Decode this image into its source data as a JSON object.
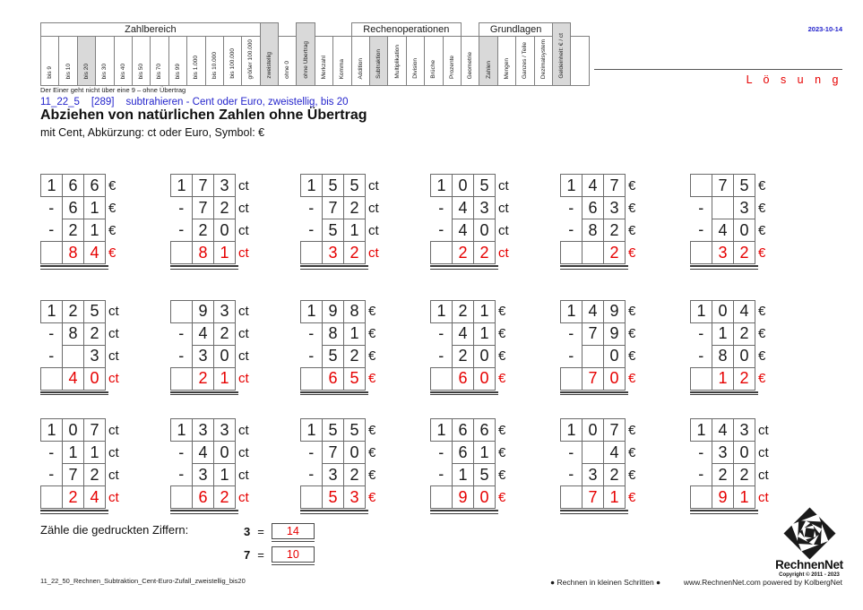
{
  "colors": {
    "accent_red": "#e60000",
    "accent_blue": "#2424cc",
    "highlight_gray": "#d9d9d9",
    "border_gray": "#808080"
  },
  "header": {
    "date": "2023-10-14",
    "solution_label": "L ö s u n g",
    "note": "Der Einer geht nicht über eine 9 – ohne Übertrag"
  },
  "header_table": {
    "groups": [
      {
        "label": "Zahlbereich",
        "start": 0,
        "span": 12
      },
      {
        "label": "Rechenoperationen",
        "start": 17,
        "span": 6
      },
      {
        "label": "Grundlagen",
        "start": 24,
        "span": 4
      }
    ],
    "columns": [
      {
        "label": "bis 9"
      },
      {
        "label": "bis 10"
      },
      {
        "label": "bis 20",
        "gray": true
      },
      {
        "label": "bis 30"
      },
      {
        "label": "bis 40"
      },
      {
        "label": "bis 50"
      },
      {
        "label": "bis 70"
      },
      {
        "label": "bis 99"
      },
      {
        "label": "bis 1.000"
      },
      {
        "label": "bis 10.000"
      },
      {
        "label": "bis 100.000"
      },
      {
        "label": "größer 100.000"
      },
      {
        "label": "zweistellig",
        "gray": true,
        "tall": true
      },
      {
        "label": "ohne 0"
      },
      {
        "label": "ohne Übertrag",
        "gray": true,
        "tall": true
      },
      {
        "label": "Merkzahl"
      },
      {
        "label": "Komma"
      },
      {
        "label": "Addition"
      },
      {
        "label": "Subtraktion",
        "gray": true
      },
      {
        "label": "Multiplikation"
      },
      {
        "label": "Division"
      },
      {
        "label": "Brüche"
      },
      {
        "label": "Prozente"
      },
      {
        "label": "Geometrie"
      },
      {
        "label": "Zahlen",
        "gray": true
      },
      {
        "label": "Mengen"
      },
      {
        "label": "Ganzes / Teile"
      },
      {
        "label": "Dezimalsystem"
      },
      {
        "label": "Geldeinheit: € / ct",
        "gray": true,
        "tall": true
      },
      {
        "label": ""
      }
    ]
  },
  "title": {
    "code": "11_22_5",
    "ref": "[289]",
    "desc": "subtrahieren - Cent oder Euro, zweistellig, bis 20",
    "heading": "Abziehen von natürlichen Zahlen ohne Übertrag",
    "subheading": "mit Cent, Abkürzung: ct oder Euro, Symbol: €"
  },
  "minus_sign": "-",
  "problems": [
    {
      "unit": "€",
      "minuend": [
        "1",
        "6",
        "6"
      ],
      "subtrahend1": [
        "6",
        "1"
      ],
      "subtrahend2": [
        "2",
        "1"
      ],
      "result": [
        "",
        "8",
        "4"
      ]
    },
    {
      "unit": "ct",
      "minuend": [
        "1",
        "7",
        "3"
      ],
      "subtrahend1": [
        "7",
        "2"
      ],
      "subtrahend2": [
        "2",
        "0"
      ],
      "result": [
        "",
        "8",
        "1"
      ]
    },
    {
      "unit": "ct",
      "minuend": [
        "1",
        "5",
        "5"
      ],
      "subtrahend1": [
        "7",
        "2"
      ],
      "subtrahend2": [
        "5",
        "1"
      ],
      "result": [
        "",
        "3",
        "2"
      ]
    },
    {
      "unit": "ct",
      "minuend": [
        "1",
        "0",
        "5"
      ],
      "subtrahend1": [
        "4",
        "3"
      ],
      "subtrahend2": [
        "4",
        "0"
      ],
      "result": [
        "",
        "2",
        "2"
      ]
    },
    {
      "unit": "€",
      "minuend": [
        "1",
        "4",
        "7"
      ],
      "subtrahend1": [
        "6",
        "3"
      ],
      "subtrahend2": [
        "8",
        "2"
      ],
      "result": [
        "",
        "",
        "2"
      ]
    },
    {
      "unit": "€",
      "minuend": [
        "",
        "7",
        "5"
      ],
      "subtrahend1": [
        "",
        "3"
      ],
      "subtrahend2": [
        "4",
        "0"
      ],
      "result": [
        "",
        "3",
        "2"
      ]
    },
    {
      "unit": "ct",
      "minuend": [
        "1",
        "2",
        "5"
      ],
      "subtrahend1": [
        "8",
        "2"
      ],
      "subtrahend2": [
        "",
        "3"
      ],
      "result": [
        "",
        "4",
        "0"
      ]
    },
    {
      "unit": "ct",
      "minuend": [
        "",
        "9",
        "3"
      ],
      "subtrahend1": [
        "4",
        "2"
      ],
      "subtrahend2": [
        "3",
        "0"
      ],
      "result": [
        "",
        "2",
        "1"
      ]
    },
    {
      "unit": "€",
      "minuend": [
        "1",
        "9",
        "8"
      ],
      "subtrahend1": [
        "8",
        "1"
      ],
      "subtrahend2": [
        "5",
        "2"
      ],
      "result": [
        "",
        "6",
        "5"
      ]
    },
    {
      "unit": "€",
      "minuend": [
        "1",
        "2",
        "1"
      ],
      "subtrahend1": [
        "4",
        "1"
      ],
      "subtrahend2": [
        "2",
        "0"
      ],
      "result": [
        "",
        "6",
        "0"
      ]
    },
    {
      "unit": "€",
      "minuend": [
        "1",
        "4",
        "9"
      ],
      "subtrahend1": [
        "7",
        "9"
      ],
      "subtrahend2": [
        "",
        "0"
      ],
      "result": [
        "",
        "7",
        "0"
      ]
    },
    {
      "unit": "€",
      "minuend": [
        "1",
        "0",
        "4"
      ],
      "subtrahend1": [
        "1",
        "2"
      ],
      "subtrahend2": [
        "8",
        "0"
      ],
      "result": [
        "",
        "1",
        "2"
      ]
    },
    {
      "unit": "ct",
      "minuend": [
        "1",
        "0",
        "7"
      ],
      "subtrahend1": [
        "1",
        "1"
      ],
      "subtrahend2": [
        "7",
        "2"
      ],
      "result": [
        "",
        "2",
        "4"
      ]
    },
    {
      "unit": "ct",
      "minuend": [
        "1",
        "3",
        "3"
      ],
      "subtrahend1": [
        "4",
        "0"
      ],
      "subtrahend2": [
        "3",
        "1"
      ],
      "result": [
        "",
        "6",
        "2"
      ]
    },
    {
      "unit": "€",
      "minuend": [
        "1",
        "5",
        "5"
      ],
      "subtrahend1": [
        "7",
        "0"
      ],
      "subtrahend2": [
        "3",
        "2"
      ],
      "result": [
        "",
        "5",
        "3"
      ]
    },
    {
      "unit": "€",
      "minuend": [
        "1",
        "6",
        "6"
      ],
      "subtrahend1": [
        "6",
        "1"
      ],
      "subtrahend2": [
        "1",
        "5"
      ],
      "result": [
        "",
        "9",
        "0"
      ]
    },
    {
      "unit": "€",
      "minuend": [
        "1",
        "0",
        "7"
      ],
      "subtrahend1": [
        "",
        "4"
      ],
      "subtrahend2": [
        "3",
        "2"
      ],
      "result": [
        "",
        "7",
        "1"
      ]
    },
    {
      "unit": "ct",
      "minuend": [
        "1",
        "4",
        "3"
      ],
      "subtrahend1": [
        "3",
        "0"
      ],
      "subtrahend2": [
        "2",
        "2"
      ],
      "result": [
        "",
        "9",
        "1"
      ]
    }
  ],
  "count_section": {
    "label": "Zähle die gedruckten Ziffern:",
    "eq": "=",
    "items": [
      {
        "digit": "3",
        "count": "14"
      },
      {
        "digit": "7",
        "count": "10"
      }
    ]
  },
  "footer": {
    "filename": "11_22_50_Rechnen_Subtraktion_Cent-Euro-Zufall_zweistellig_bis20",
    "slogan": "● Rechnen in kleinen Schritten ●",
    "website": "www.RechnenNet.com powered by KolbergNet",
    "logo_text": "RechnenNet",
    "copyright": "Copyright © 2011 - 2023"
  }
}
